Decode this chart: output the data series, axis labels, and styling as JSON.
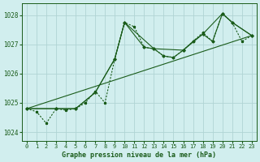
{
  "background_color": "#d1eeee",
  "grid_color": "#b0d4d4",
  "line_color": "#1a5c1a",
  "title": "Graphe pression niveau de la mer (hPa)",
  "xlim": [
    -0.5,
    23.5
  ],
  "ylim": [
    1023.7,
    1028.4
  ],
  "yticks": [
    1024,
    1025,
    1026,
    1027,
    1028
  ],
  "xticks": [
    0,
    1,
    2,
    3,
    4,
    5,
    6,
    7,
    8,
    9,
    10,
    11,
    12,
    13,
    14,
    15,
    16,
    17,
    18,
    19,
    20,
    21,
    22,
    23
  ],
  "main_x": [
    0,
    1,
    2,
    3,
    4,
    5,
    6,
    7,
    8,
    9,
    10,
    11,
    12,
    13,
    14,
    15,
    16,
    17,
    18,
    19,
    20,
    21,
    22,
    23
  ],
  "main_y": [
    1024.8,
    1024.7,
    1024.3,
    1024.8,
    1024.75,
    1024.8,
    1025.0,
    1025.4,
    1025.0,
    1026.5,
    1027.75,
    1027.6,
    1026.9,
    1026.85,
    1026.6,
    1026.55,
    1026.8,
    1027.1,
    1027.4,
    1027.1,
    1028.05,
    1027.75,
    1027.1,
    1027.3
  ],
  "trend_x": [
    0,
    23
  ],
  "trend_y": [
    1024.8,
    1027.3
  ],
  "smooth1_x": [
    0,
    3,
    5,
    7,
    9,
    10,
    12,
    13,
    14,
    15,
    16,
    17,
    18,
    19,
    20,
    21,
    23
  ],
  "smooth1_y": [
    1024.8,
    1024.8,
    1024.8,
    1025.35,
    1026.5,
    1027.75,
    1026.9,
    1026.85,
    1026.6,
    1026.55,
    1026.8,
    1027.1,
    1027.35,
    1027.1,
    1028.05,
    1027.75,
    1027.3
  ],
  "smooth2_x": [
    0,
    3,
    5,
    7,
    9,
    10,
    13,
    16,
    18,
    20,
    21,
    23
  ],
  "smooth2_y": [
    1024.8,
    1024.8,
    1024.8,
    1025.35,
    1026.5,
    1027.75,
    1026.85,
    1026.8,
    1027.35,
    1028.05,
    1027.75,
    1027.3
  ]
}
